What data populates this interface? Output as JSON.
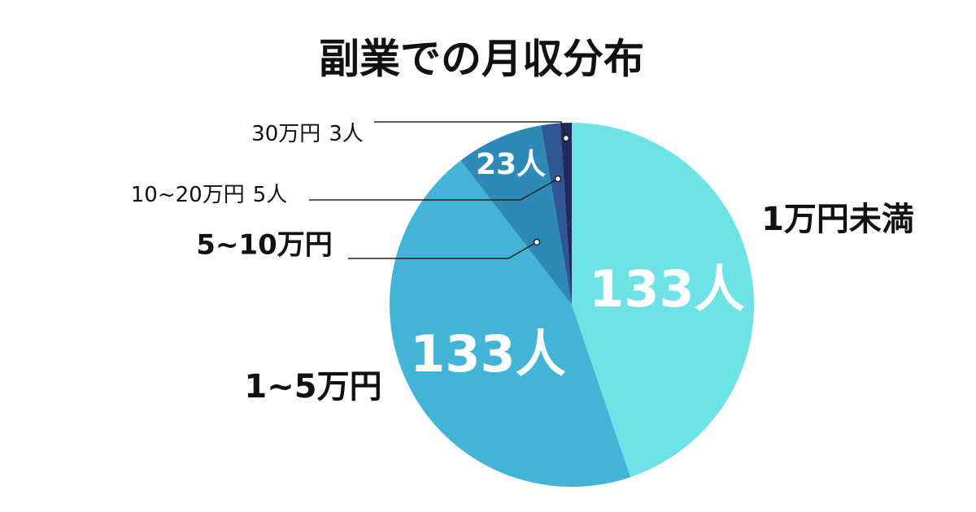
{
  "chart_data": {
    "type": "pie",
    "title": "副業での月収分布",
    "categories": [
      "1万円未満",
      "1~5万円",
      "5~10万円",
      "10~20万円",
      "30万円"
    ],
    "values": [
      133,
      133,
      23,
      5,
      3
    ],
    "value_labels": [
      "133人",
      "133人",
      "23人",
      "5人",
      "3人"
    ],
    "colors": [
      "#6de3e8",
      "#42b5d6",
      "#2e88b8",
      "#2f5797",
      "#27285e"
    ]
  }
}
